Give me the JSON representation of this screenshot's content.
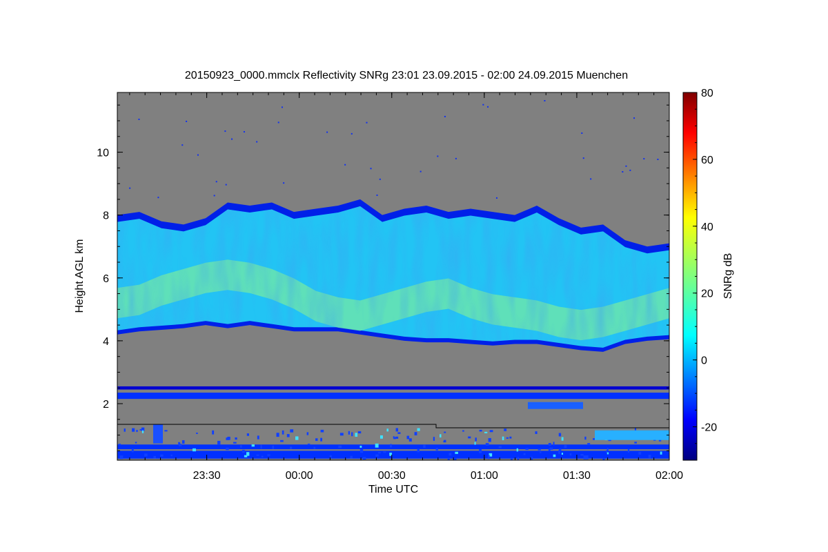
{
  "chart_data": {
    "type": "heatmap",
    "title": "20150923_0000.mmclx Reflectivity SNRg   23:01 23.09.2015 - 02:00 24.09.2015 Muenchen",
    "xlabel": "Time UTC",
    "ylabel": "Height AGL km",
    "x_ticks": [
      "23:30",
      "00:00",
      "00:30",
      "01:00",
      "01:30",
      "02:00"
    ],
    "xlim": [
      "23:01",
      "02:00"
    ],
    "y_ticks": [
      2,
      4,
      6,
      8,
      10
    ],
    "ylim": [
      0.2,
      11.9
    ],
    "colorbar": {
      "label": "SNRg dB",
      "ticks": [
        -20,
        0,
        20,
        40,
        60,
        80
      ],
      "range": [
        -30,
        80
      ],
      "colormap": "jet"
    },
    "background_color": "#808080",
    "cloud_layer": {
      "top_km": [
        8.0,
        8.1,
        7.8,
        7.7,
        7.9,
        8.4,
        8.3,
        8.4,
        8.1,
        8.2,
        8.3,
        8.5,
        8.0,
        8.2,
        8.3,
        8.1,
        8.2,
        8.1,
        8.0,
        8.3,
        7.9,
        7.6,
        7.7,
        7.2,
        7.0,
        7.1
      ],
      "base_km": [
        4.2,
        4.3,
        4.35,
        4.4,
        4.5,
        4.4,
        4.5,
        4.4,
        4.3,
        4.3,
        4.3,
        4.2,
        4.1,
        4.0,
        3.95,
        3.95,
        3.9,
        3.85,
        3.9,
        3.9,
        3.8,
        3.7,
        3.65,
        3.9,
        4.0,
        4.05
      ],
      "core_km": [
        5.2,
        5.3,
        5.6,
        5.8,
        6.0,
        6.1,
        6.0,
        5.8,
        5.5,
        5.1,
        4.9,
        4.8,
        5.0,
        5.2,
        5.4,
        5.5,
        5.2,
        5.0,
        4.9,
        4.8,
        4.6,
        4.5,
        4.6,
        4.8,
        5.0,
        5.2
      ]
    },
    "low_bands": [
      {
        "from_km": 2.45,
        "to_km": 2.55,
        "snr_db": -18
      },
      {
        "from_km": 2.15,
        "to_km": 2.35,
        "snr_db": -10
      },
      {
        "from_km": 0.55,
        "to_km": 0.7,
        "snr_db": -16
      },
      {
        "from_km": 0.25,
        "to_km": 0.5,
        "snr_db": -8
      }
    ]
  }
}
